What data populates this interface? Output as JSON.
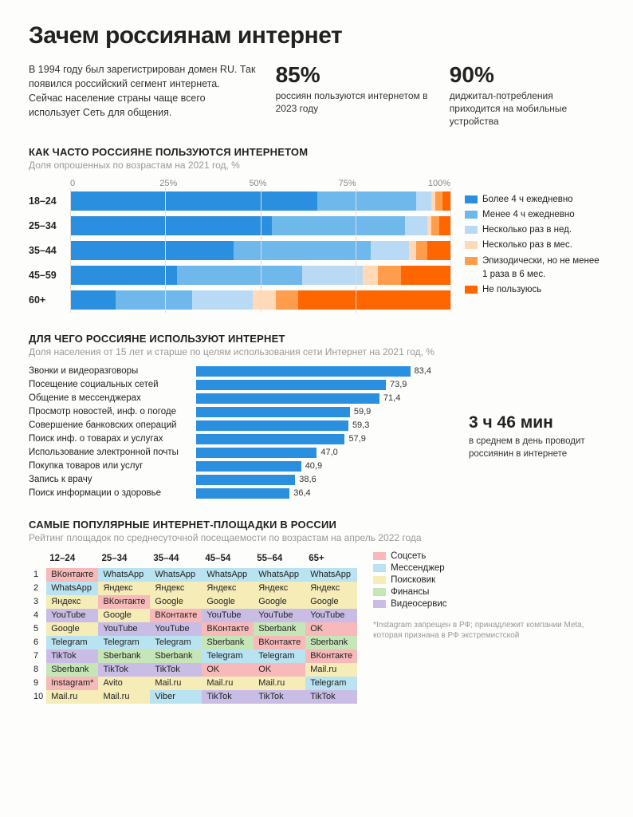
{
  "title": "Зачем россиянам интернет",
  "intro": "В 1994 году был зарегистрирован домен RU. Так появился российский сегмент интернета. Сейчас население страны чаще всего использует Сеть для общения.",
  "stats": [
    {
      "big": "85%",
      "sub": "россиян пользуются интернетом в 2023 году"
    },
    {
      "big": "90%",
      "sub": "диджитал-потребления приходится на мобиль­ные устройства"
    }
  ],
  "chart1": {
    "title": "КАК ЧАСТО РОССИЯНЕ ПОЛЬЗУЮТСЯ ИНТЕРНЕТОМ",
    "subtitle": "Доля опрошенных по возрастам на 2021 год, %",
    "axis_ticks": [
      "0",
      "25%",
      "50%",
      "75%",
      "100%"
    ],
    "colors": [
      "#2b8fe0",
      "#6fb8ec",
      "#b9daf4",
      "#ffd9b8",
      "#ff9d4d",
      "#ff6600"
    ],
    "legend": [
      "Более 4 ч ежедневно",
      "Менее 4 ч ежедневно",
      "Несколько раз в нед.",
      "Несколько раз в мес.",
      "Эпизодически, но не менее 1 раза в 6 мес.",
      "Не пользуюсь"
    ],
    "rows": [
      {
        "label": "18–24",
        "segments": [
          65,
          26,
          4,
          1,
          2,
          2
        ]
      },
      {
        "label": "25–34",
        "segments": [
          53,
          35,
          6,
          1,
          2,
          3
        ]
      },
      {
        "label": "35–44",
        "segments": [
          43,
          36,
          10,
          2,
          3,
          6
        ]
      },
      {
        "label": "45–59",
        "segments": [
          28,
          33,
          16,
          4,
          6,
          13
        ]
      },
      {
        "label": "60+",
        "segments": [
          12,
          20,
          16,
          6,
          6,
          40
        ]
      }
    ]
  },
  "chart2": {
    "title": "ДЛЯ ЧЕГО РОССИЯНЕ ИСПОЛЬЗУЮТ ИНТЕРНЕТ",
    "subtitle": "Доля населения от 15 лет и старше по целям использования сети Интернет на 2021 год, %",
    "bar_color": "#2b8fe0",
    "max": 100,
    "rows": [
      {
        "label": "Звонки и видеоразговоры",
        "value": 83.4,
        "vtext": "83,4"
      },
      {
        "label": "Посещение социальных сетей",
        "value": 73.9,
        "vtext": "73,9"
      },
      {
        "label": "Общение в мессенджерах",
        "value": 71.4,
        "vtext": "71,4"
      },
      {
        "label": "Просмотр новостей, инф. о погоде",
        "value": 59.9,
        "vtext": "59,9"
      },
      {
        "label": "Совершение банковских операций",
        "value": 59.3,
        "vtext": "59,3"
      },
      {
        "label": "Поиск инф. о товарах и услугах",
        "value": 57.9,
        "vtext": "57,9"
      },
      {
        "label": "Использование электронной почты",
        "value": 47.0,
        "vtext": "47,0"
      },
      {
        "label": "Покупка товаров или услуг",
        "value": 40.9,
        "vtext": "40,9"
      },
      {
        "label": "Запись к врачу",
        "value": 38.6,
        "vtext": "38,6"
      },
      {
        "label": "Поиск информации о здоровье",
        "value": 36.4,
        "vtext": "36,4"
      }
    ],
    "side_stat": {
      "big": "3 ч 46 мин",
      "sub": "в среднем в день проводит россиянин в интернете"
    }
  },
  "table": {
    "title": "САМЫЕ ПОПУЛЯРНЫЕ ИНТЕРНЕТ-ПЛОЩАДКИ В РОССИИ",
    "subtitle": "Рейтинг площадок по среднесуточной посещаемости по возрастам на апрель 2022 года",
    "age_cols": [
      "12–24",
      "25–34",
      "35–44",
      "45–54",
      "55–64",
      "65+"
    ],
    "category_colors": {
      "social": "#f7b9b9",
      "messenger": "#b9e3f0",
      "search": "#f5ecb8",
      "finance": "#c6e6b8",
      "video": "#c9bde6"
    },
    "legend": [
      {
        "cat": "social",
        "label": "Соцсеть"
      },
      {
        "cat": "messenger",
        "label": "Мессенджер"
      },
      {
        "cat": "search",
        "label": "Поисковик"
      },
      {
        "cat": "finance",
        "label": "Финансы"
      },
      {
        "cat": "video",
        "label": "Видеосервис"
      }
    ],
    "footnote": "*Instagram запрещен в РФ; принадлежит компании Meta, которая признана в РФ экстремистской",
    "rows": [
      [
        {
          "t": "ВКонтакте",
          "c": "social"
        },
        {
          "t": "WhatsApp",
          "c": "messenger"
        },
        {
          "t": "WhatsApp",
          "c": "messenger"
        },
        {
          "t": "WhatsApp",
          "c": "messenger"
        },
        {
          "t": "WhatsApp",
          "c": "messenger"
        },
        {
          "t": "WhatsApp",
          "c": "messenger"
        }
      ],
      [
        {
          "t": "WhatsApp",
          "c": "messenger"
        },
        {
          "t": "Яндекс",
          "c": "search"
        },
        {
          "t": "Яндекс",
          "c": "search"
        },
        {
          "t": "Яндекс",
          "c": "search"
        },
        {
          "t": "Яндекс",
          "c": "search"
        },
        {
          "t": "Яндекс",
          "c": "search"
        }
      ],
      [
        {
          "t": "Яндекс",
          "c": "search"
        },
        {
          "t": "ВКонтакте",
          "c": "social"
        },
        {
          "t": "Google",
          "c": "search"
        },
        {
          "t": "Google",
          "c": "search"
        },
        {
          "t": "Google",
          "c": "search"
        },
        {
          "t": "Google",
          "c": "search"
        }
      ],
      [
        {
          "t": "YouTube",
          "c": "video"
        },
        {
          "t": "Google",
          "c": "search"
        },
        {
          "t": "ВКонтакте",
          "c": "social"
        },
        {
          "t": "YouTube",
          "c": "video"
        },
        {
          "t": "YouTube",
          "c": "video"
        },
        {
          "t": "YouTube",
          "c": "video"
        }
      ],
      [
        {
          "t": "Google",
          "c": "search"
        },
        {
          "t": "YouTube",
          "c": "video"
        },
        {
          "t": "YouTube",
          "c": "video"
        },
        {
          "t": "ВКонтакте",
          "c": "social"
        },
        {
          "t": "Sberbank",
          "c": "finance"
        },
        {
          "t": "OK",
          "c": "social"
        }
      ],
      [
        {
          "t": "Telegram",
          "c": "messenger"
        },
        {
          "t": "Telegram",
          "c": "messenger"
        },
        {
          "t": "Telegram",
          "c": "messenger"
        },
        {
          "t": "Sberbank",
          "c": "finance"
        },
        {
          "t": "ВКонтакте",
          "c": "social"
        },
        {
          "t": "Sberbank",
          "c": "finance"
        }
      ],
      [
        {
          "t": "TikTok",
          "c": "video"
        },
        {
          "t": "Sberbank",
          "c": "finance"
        },
        {
          "t": "Sberbank",
          "c": "finance"
        },
        {
          "t": "Telegram",
          "c": "messenger"
        },
        {
          "t": "Telegram",
          "c": "messenger"
        },
        {
          "t": "ВКонтакте",
          "c": "social"
        }
      ],
      [
        {
          "t": "Sberbank",
          "c": "finance"
        },
        {
          "t": "TikTok",
          "c": "video"
        },
        {
          "t": "TikTok",
          "c": "video"
        },
        {
          "t": "OK",
          "c": "social"
        },
        {
          "t": "OK",
          "c": "social"
        },
        {
          "t": "Mail.ru",
          "c": "search"
        }
      ],
      [
        {
          "t": "Instagram*",
          "c": "social"
        },
        {
          "t": "Avito",
          "c": "search"
        },
        {
          "t": "Mail.ru",
          "c": "search"
        },
        {
          "t": "Mail.ru",
          "c": "search"
        },
        {
          "t": "Mail.ru",
          "c": "search"
        },
        {
          "t": "Telegram",
          "c": "messenger"
        }
      ],
      [
        {
          "t": "Mail.ru",
          "c": "search"
        },
        {
          "t": "Mail.ru",
          "c": "search"
        },
        {
          "t": "Viber",
          "c": "messenger"
        },
        {
          "t": "TikTok",
          "c": "video"
        },
        {
          "t": "TikTok",
          "c": "video"
        },
        {
          "t": "TikTok",
          "c": "video"
        }
      ]
    ]
  }
}
